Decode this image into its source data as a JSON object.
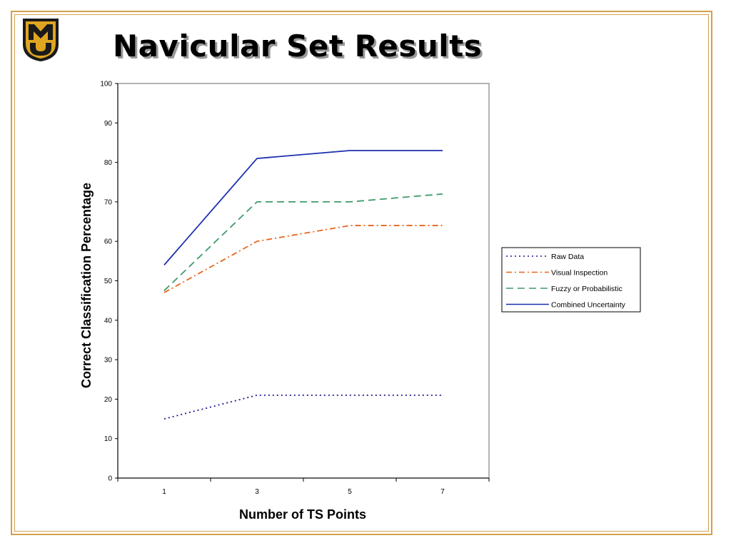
{
  "slide": {
    "title": "Navicular Set Results",
    "frame_color": "#d4a04a",
    "logo_icon": "mizzou-mu-shield-logo"
  },
  "chart_data": {
    "type": "line",
    "title": "",
    "xlabel": "Number of TS Points",
    "ylabel": "Correct Classification  Percentage",
    "x": [
      1,
      3,
      5,
      7
    ],
    "ylim": [
      0,
      100
    ],
    "yticks": [
      0,
      10,
      20,
      30,
      40,
      50,
      60,
      70,
      80,
      90,
      100
    ],
    "grid": false,
    "legend_position": "right",
    "series": [
      {
        "name": "Raw Data",
        "values": [
          15,
          21,
          21,
          21
        ],
        "color": "#1a1a8c",
        "dash": "dotted"
      },
      {
        "name": "Visual Inspection",
        "values": [
          47,
          60,
          64,
          64
        ],
        "color": "#e8651c",
        "dash": "dash-dot"
      },
      {
        "name": "Fuzzy or Probabilistic",
        "values": [
          47.5,
          70,
          70,
          72
        ],
        "color": "#3f9a6a",
        "dash": "dashed"
      },
      {
        "name": "Combined Uncertainty",
        "values": [
          54,
          81,
          83,
          83
        ],
        "color": "#1c2fb0",
        "dash": "solid"
      }
    ]
  }
}
